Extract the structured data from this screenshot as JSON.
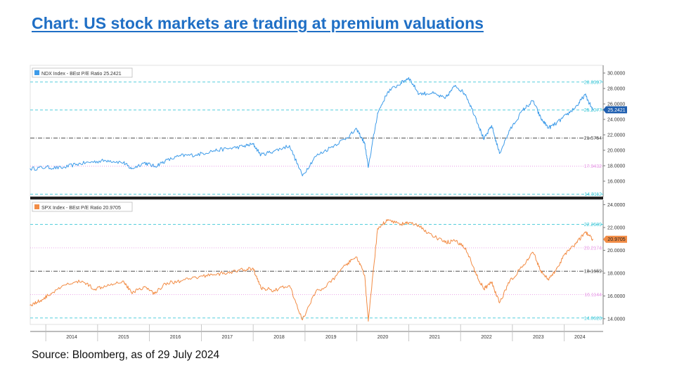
{
  "title": "Chart: US stock markets are trading at premium valuations",
  "source": "Source: Bloomberg, as of 29 July 2024",
  "chart_data": [
    {
      "type": "line",
      "legend": "NDX Index - BEst P/E Ratio 25.2421",
      "color": "#3d9be9",
      "last_value": 25.2421,
      "last_label": "25.2421",
      "ylim": [
        14.0,
        31.0
      ],
      "yticks": [
        "16.0000",
        "18.0000",
        "20.0000",
        "22.0000",
        "24.0000",
        "26.0000",
        "28.0000",
        "30.0000"
      ],
      "reference_lines": [
        {
          "value": 28.8397,
          "label": "28.8397",
          "color": "#3fc8d8",
          "style": "dash"
        },
        {
          "value": 25.2077,
          "label": "25.2077",
          "color": "#3fc8d8",
          "style": "dash"
        },
        {
          "value": 21.5754,
          "label": "21.5754",
          "color": "#333333",
          "style": "dashdot"
        },
        {
          "value": 17.9432,
          "label": "17.9432",
          "color": "#e79be6",
          "style": "dot"
        },
        {
          "value": 14.3112,
          "label": "14.3112",
          "color": "#3fc8d8",
          "style": "dash"
        }
      ],
      "x": [
        2013.7,
        2014.0,
        2014.3,
        2014.6,
        2014.9,
        2015.2,
        2015.5,
        2015.65,
        2015.9,
        2016.1,
        2016.3,
        2016.6,
        2016.9,
        2017.2,
        2017.5,
        2017.8,
        2018.0,
        2018.15,
        2018.4,
        2018.7,
        2018.95,
        2019.2,
        2019.5,
        2019.8,
        2020.0,
        2020.15,
        2020.22,
        2020.4,
        2020.6,
        2020.85,
        2021.0,
        2021.2,
        2021.45,
        2021.7,
        2021.9,
        2022.1,
        2022.3,
        2022.45,
        2022.6,
        2022.75,
        2022.95,
        2023.2,
        2023.4,
        2023.55,
        2023.7,
        2023.85,
        2024.05,
        2024.25,
        2024.4,
        2024.55
      ],
      "y": [
        17.6,
        17.8,
        17.7,
        18.2,
        18.5,
        18.7,
        18.4,
        17.6,
        18.4,
        17.9,
        18.6,
        19.3,
        19.4,
        19.9,
        20.2,
        20.5,
        20.8,
        19.4,
        19.9,
        20.6,
        16.7,
        19.2,
        20.4,
        21.6,
        22.7,
        20.9,
        17.8,
        24.8,
        27.6,
        28.7,
        29.4,
        27.3,
        27.4,
        26.7,
        28.4,
        27.2,
        24.1,
        21.4,
        23.2,
        19.6,
        22.6,
        25.2,
        26.4,
        24.1,
        22.9,
        23.5,
        24.6,
        25.8,
        27.2,
        25.24
      ]
    },
    {
      "type": "line",
      "legend": "SPX Index - BEst P/E Ratio 20.9705",
      "color": "#f28c45",
      "last_value": 20.9705,
      "last_label": "20.9705",
      "ylim": [
        13.5,
        24.4
      ],
      "yticks": [
        "14.0000",
        "16.0000",
        "18.0000",
        "20.0000",
        "22.0000",
        "24.0000"
      ],
      "reference_lines": [
        {
          "value": 22.2689,
          "label": "22.2689",
          "color": "#3fc8d8",
          "style": "dash"
        },
        {
          "value": 20.2174,
          "label": "20.2174",
          "color": "#e79be6",
          "style": "dot"
        },
        {
          "value": 18.1659,
          "label": "18.1659",
          "color": "#333333",
          "style": "dashdot"
        },
        {
          "value": 16.1144,
          "label": "16.1144",
          "color": "#e79be6",
          "style": "dot"
        },
        {
          "value": 14.0628,
          "label": "14.0628",
          "color": "#3fc8d8",
          "style": "dash"
        }
      ],
      "x": [
        2013.7,
        2013.9,
        2014.1,
        2014.4,
        2014.7,
        2014.95,
        2015.2,
        2015.5,
        2015.65,
        2015.9,
        2016.1,
        2016.3,
        2016.6,
        2016.9,
        2017.2,
        2017.5,
        2017.8,
        2018.0,
        2018.15,
        2018.4,
        2018.7,
        2018.95,
        2019.2,
        2019.5,
        2019.8,
        2020.0,
        2020.15,
        2020.22,
        2020.4,
        2020.6,
        2020.85,
        2021.0,
        2021.2,
        2021.45,
        2021.7,
        2021.9,
        2022.1,
        2022.3,
        2022.45,
        2022.6,
        2022.75,
        2022.95,
        2023.2,
        2023.4,
        2023.55,
        2023.7,
        2023.85,
        2024.05,
        2024.25,
        2024.4,
        2024.55
      ],
      "y": [
        15.2,
        15.6,
        16.2,
        17.0,
        17.3,
        16.6,
        17.0,
        17.3,
        16.3,
        16.8,
        16.2,
        17.1,
        17.3,
        17.6,
        17.9,
        18.0,
        18.3,
        18.4,
        16.7,
        16.5,
        16.9,
        13.9,
        16.3,
        17.2,
        18.8,
        19.4,
        17.8,
        13.8,
        21.9,
        22.7,
        22.3,
        22.4,
        22.1,
        21.3,
        20.7,
        20.8,
        20.2,
        17.9,
        16.6,
        17.2,
        15.4,
        17.3,
        18.6,
        19.8,
        18.2,
        17.4,
        18.4,
        19.9,
        20.7,
        21.6,
        20.97
      ]
    }
  ],
  "x_axis": {
    "ticks": [
      "2014",
      "2015",
      "2016",
      "2017",
      "2018",
      "2019",
      "2020",
      "2021",
      "2022",
      "2023",
      "2024"
    ]
  }
}
